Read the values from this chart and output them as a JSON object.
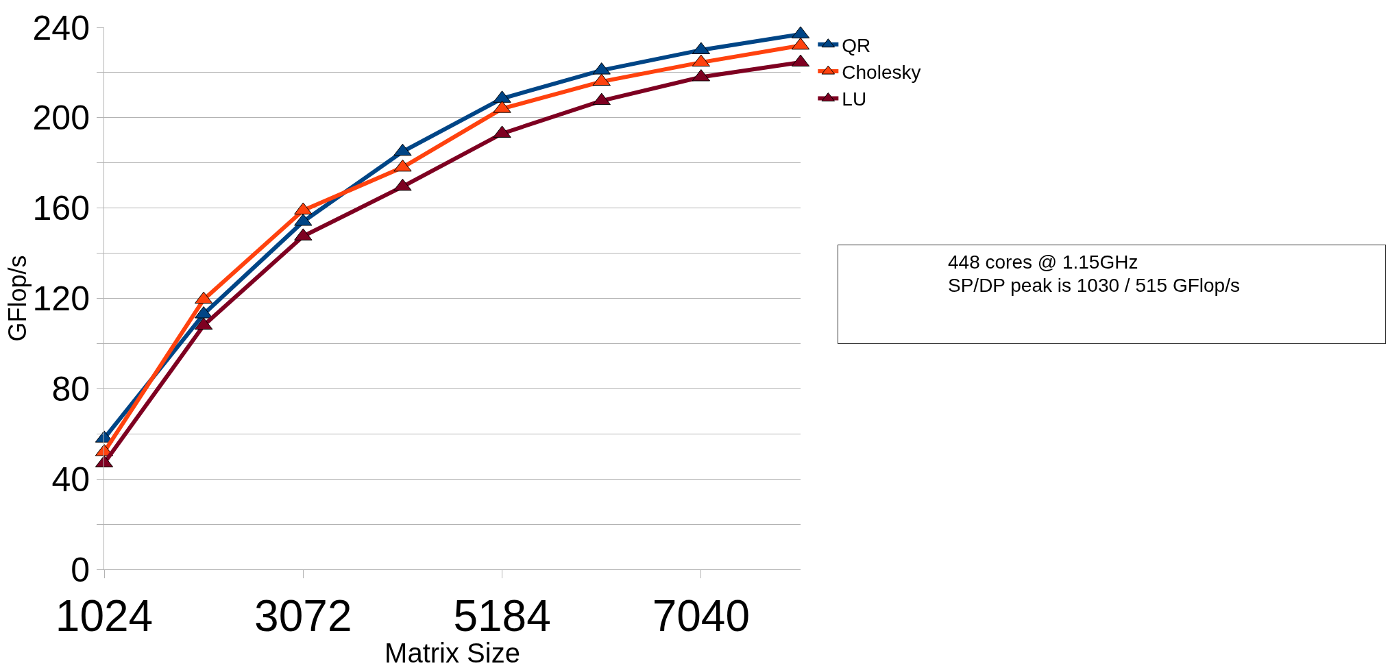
{
  "chart_data": {
    "type": "line",
    "xlabel": "Matrix Size",
    "ylabel": "GFlop/s",
    "categories": [
      "1024",
      null,
      "3072",
      null,
      "5184",
      null,
      "7040",
      null
    ],
    "series": [
      {
        "name": "QR",
        "color": "#004586",
        "values": [
          58,
          113,
          154,
          185,
          208.5,
          221,
          230,
          237
        ]
      },
      {
        "name": "Cholesky",
        "color": "#ff420e",
        "values": [
          52,
          119.5,
          159,
          178,
          204,
          216,
          224.5,
          232
        ]
      },
      {
        "name": "LU",
        "color": "#7e0021",
        "values": [
          47,
          108,
          147.5,
          169.5,
          193,
          207.5,
          218,
          224.5
        ]
      }
    ],
    "ylim": [
      0,
      240
    ],
    "yticks": [
      0,
      {
        "value": 20,
        "label": null
      },
      40,
      {
        "value": 60,
        "label": null
      },
      80,
      {
        "value": 100,
        "label": null
      },
      120,
      {
        "value": 140,
        "label": null
      },
      160,
      {
        "value": 180,
        "label": null
      },
      200,
      {
        "value": 220,
        "label": null
      },
      240
    ],
    "grid": "y",
    "legend": "top right",
    "marker": "triangle",
    "line_style": "solid",
    "annotations": [
      "448 cores @ 1.15GHz",
      "SP/DP peak is 1030 / 515 GFlop/s"
    ]
  }
}
